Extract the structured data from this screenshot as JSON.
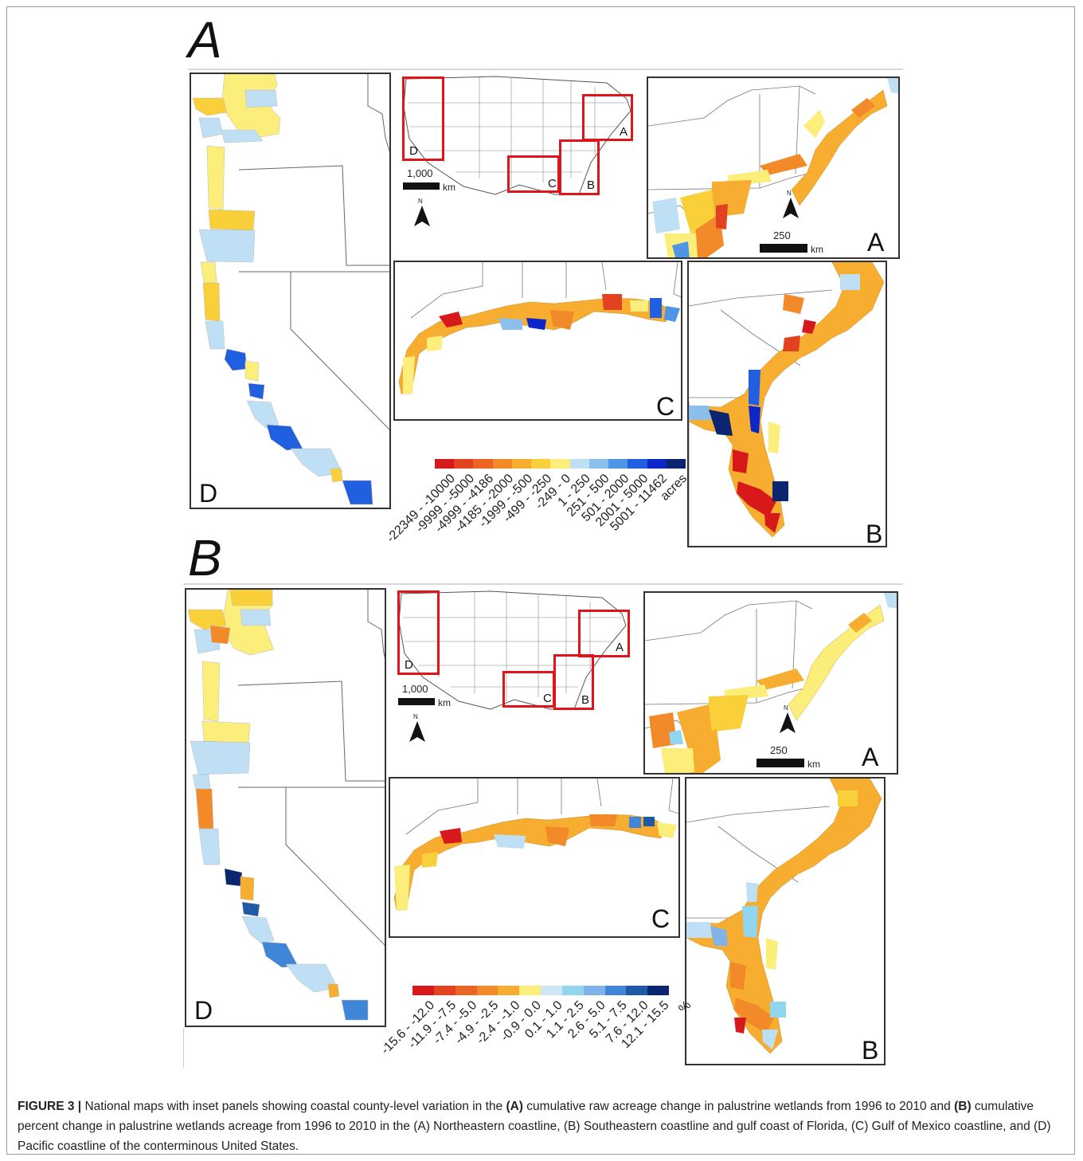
{
  "figureA": {
    "letter": "A",
    "panels": {
      "D": "D",
      "A": "A",
      "C": "C",
      "B": "B"
    },
    "overview": {
      "box_labels": {
        "D": "D",
        "A": "A",
        "C": "C",
        "B": "B"
      },
      "scale_value": "1,000",
      "scale_unit": "km",
      "north": "N"
    },
    "inset_scale": {
      "value": "250",
      "unit": "km",
      "north": "N"
    },
    "legend": {
      "unit": "acres",
      "classes": [
        {
          "label": "-22349 - -10000",
          "color": "#d7191c"
        },
        {
          "label": "-9999 - -5000",
          "color": "#e2421f"
        },
        {
          "label": "-4999 - -4186",
          "color": "#ec6424"
        },
        {
          "label": "-4185 - -2000",
          "color": "#f28a2a"
        },
        {
          "label": "-1999 - -500",
          "color": "#f7ad30"
        },
        {
          "label": "-499 - -250",
          "color": "#f9cf3a"
        },
        {
          "label": "-249 - 0",
          "color": "#fbee7a"
        },
        {
          "label": "1 - 250",
          "color": "#bfe0f4"
        },
        {
          "label": "251 - 500",
          "color": "#8cc0ec"
        },
        {
          "label": "501 - 2000",
          "color": "#4f95e6"
        },
        {
          "label": "2001 - 5000",
          "color": "#1f5fe0"
        },
        {
          "label": "5001 - 11462",
          "color": "#0c26c8"
        },
        {
          "label": "",
          "color": "#0b2570"
        }
      ]
    }
  },
  "figureB": {
    "letter": "B",
    "panels": {
      "D": "D",
      "A": "A",
      "C": "C",
      "B": "B"
    },
    "overview": {
      "box_labels": {
        "D": "D",
        "A": "A",
        "C": "C",
        "B": "B"
      },
      "scale_value": "1,000",
      "scale_unit": "km",
      "north": "N"
    },
    "inset_scale": {
      "value": "250",
      "unit": "km",
      "north": "N"
    },
    "legend": {
      "unit": "%",
      "classes": [
        {
          "label": "-15.6 - -12.0",
          "color": "#d7191c"
        },
        {
          "label": "-11.9 - -7.5",
          "color": "#e2421f"
        },
        {
          "label": "-7.4 - -5.0",
          "color": "#ec6424"
        },
        {
          "label": "-4.9 - -2.5",
          "color": "#f28a2a"
        },
        {
          "label": "-2.4 - -1.0",
          "color": "#f7ad30"
        },
        {
          "label": "-0.9 - 0.0",
          "color": "#fbee7a"
        },
        {
          "label": "0.1 - 1.0",
          "color": "#cfe6f5"
        },
        {
          "label": "1.1 - 2.5",
          "color": "#8fd6ee"
        },
        {
          "label": "2.6 - 5.0",
          "color": "#7fb3ea"
        },
        {
          "label": "5.1 - 7.5",
          "color": "#3f86d8"
        },
        {
          "label": "7.6 - 12.0",
          "color": "#1e5aa8"
        },
        {
          "label": "12.1 - 15.5",
          "color": "#0b2570"
        }
      ]
    }
  },
  "caption": {
    "figure_label": "FIGURE 3 |",
    "t1": " National maps with inset panels showing coastal county-level variation in the ",
    "b1": "(A)",
    "t2": " cumulative raw acreage change in palustrine wetlands from 1996 to 2010 and ",
    "b2": "(B)",
    "t3": " cumulative percent change in palustrine wetlands acreage from 1996 to 2010 in the (A) Northeastern coastline, (B) Southeastern coastline and gulf coast of Florida, (C) Gulf of Mexico coastline, and (D) Pacific coastline of the conterminous United States."
  }
}
